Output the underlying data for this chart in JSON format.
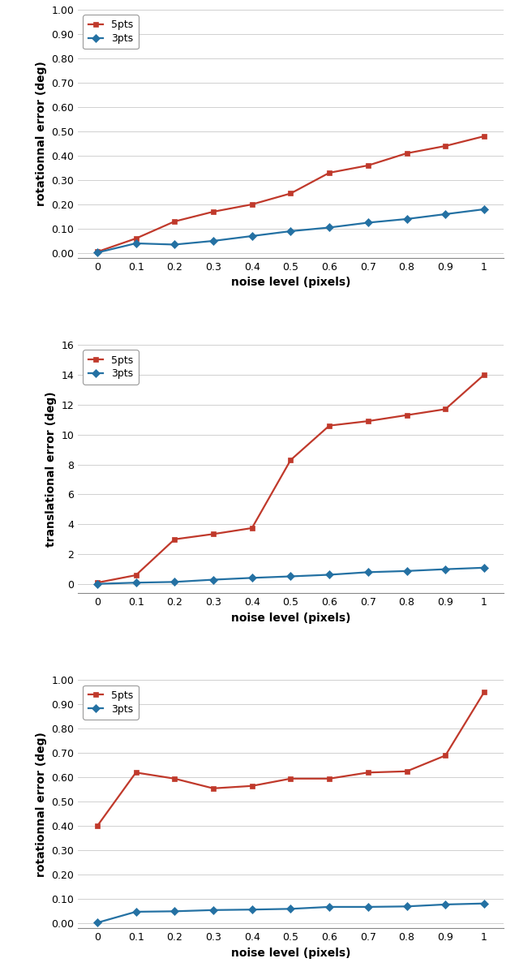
{
  "x": [
    0,
    0.1,
    0.2,
    0.3,
    0.4,
    0.5,
    0.6,
    0.7,
    0.8,
    0.9,
    1
  ],
  "plot1": {
    "red": [
      0.005,
      0.06,
      0.13,
      0.17,
      0.2,
      0.245,
      0.33,
      0.36,
      0.41,
      0.44,
      0.48
    ],
    "blue": [
      0.002,
      0.04,
      0.035,
      0.05,
      0.07,
      0.09,
      0.105,
      0.125,
      0.14,
      0.16,
      0.18
    ],
    "ylabel": "rotationnal error (deg)",
    "xlabel": "noise level (pixels)",
    "ylim": [
      -0.02,
      1.0
    ],
    "yticks": [
      0.0,
      0.1,
      0.2,
      0.3,
      0.4,
      0.5,
      0.6,
      0.7,
      0.8,
      0.9,
      1.0
    ],
    "ytick_labels": [
      "0.00",
      "0.10",
      "0.20",
      "0.30",
      "0.40",
      "0.50",
      "0.60",
      "0.70",
      "0.80",
      "0.90",
      "1.00"
    ]
  },
  "plot2": {
    "red": [
      0.1,
      0.6,
      3.0,
      3.35,
      3.75,
      8.3,
      10.6,
      10.9,
      11.3,
      11.7,
      14.0
    ],
    "blue": [
      0.02,
      0.1,
      0.15,
      0.3,
      0.42,
      0.52,
      0.63,
      0.8,
      0.88,
      1.0,
      1.1
    ],
    "ylabel": "translational error (deg)",
    "xlabel": "noise level (pixels)",
    "ylim": [
      -0.6,
      16
    ],
    "yticks": [
      0,
      2,
      4,
      6,
      8,
      10,
      12,
      14,
      16
    ],
    "ytick_labels": [
      "0",
      "2",
      "4",
      "6",
      "8",
      "10",
      "12",
      "14",
      "16"
    ]
  },
  "plot3": {
    "red": [
      0.4,
      0.62,
      0.595,
      0.555,
      0.565,
      0.595,
      0.595,
      0.62,
      0.625,
      0.69,
      0.95
    ],
    "blue": [
      0.003,
      0.048,
      0.05,
      0.055,
      0.057,
      0.06,
      0.068,
      0.068,
      0.07,
      0.078,
      0.082
    ],
    "ylabel": "rotationnal error (deg)",
    "xlabel": "noise level (pixels)",
    "ylim": [
      -0.02,
      1.0
    ],
    "yticks": [
      0.0,
      0.1,
      0.2,
      0.3,
      0.4,
      0.5,
      0.6,
      0.7,
      0.8,
      0.9,
      1.0
    ],
    "ytick_labels": [
      "0.00",
      "0.10",
      "0.20",
      "0.30",
      "0.40",
      "0.50",
      "0.60",
      "0.70",
      "0.80",
      "0.90",
      "1.00"
    ]
  },
  "x_tick_labels": [
    "0",
    "0.1",
    "0.2",
    "0.3",
    "0.4",
    "0.5",
    "0.6",
    "0.7",
    "0.8",
    "0.9",
    "1"
  ],
  "red_color": "#C0392B",
  "blue_color": "#2471A3",
  "red_label": "5pts",
  "blue_label": "3pts",
  "marker_red": "s",
  "marker_blue": "D",
  "markersize": 5,
  "linewidth": 1.6,
  "legend_fontsize": 9,
  "axis_label_fontsize": 10,
  "tick_fontsize": 9,
  "background_color": "#ffffff",
  "grid_color": "#d0d0d0",
  "spine_color": "#888888"
}
